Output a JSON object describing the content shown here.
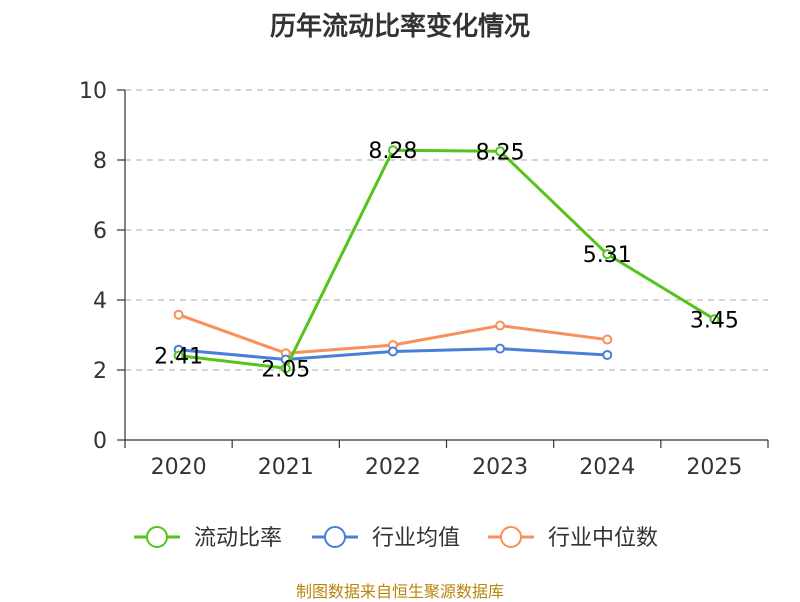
{
  "chart_data": {
    "type": "line",
    "title": "历年流动比率变化情况",
    "categories": [
      "2020",
      "2021",
      "2022",
      "2023",
      "2024",
      "2025"
    ],
    "ylim": [
      0,
      10
    ],
    "yticks": [
      0,
      2,
      4,
      6,
      8,
      10
    ],
    "grid": true,
    "legend_position": "bottom",
    "series": [
      {
        "name": "流动比率",
        "color": "#52c41a",
        "values": [
          2.41,
          2.05,
          8.28,
          8.25,
          5.31,
          3.45
        ],
        "labels": [
          "2.41",
          "2.05",
          "8.28",
          "8.25",
          "5.31",
          "3.45"
        ]
      },
      {
        "name": "行业均值",
        "color": "#4a7fd8",
        "values": [
          2.58,
          2.3,
          2.53,
          2.61,
          2.43,
          null
        ]
      },
      {
        "name": "行业中位数",
        "color": "#f7905a",
        "values": [
          3.58,
          2.48,
          2.71,
          3.27,
          2.87,
          null
        ]
      }
    ]
  },
  "source_note": "制图数据来自恒生聚源数据库"
}
